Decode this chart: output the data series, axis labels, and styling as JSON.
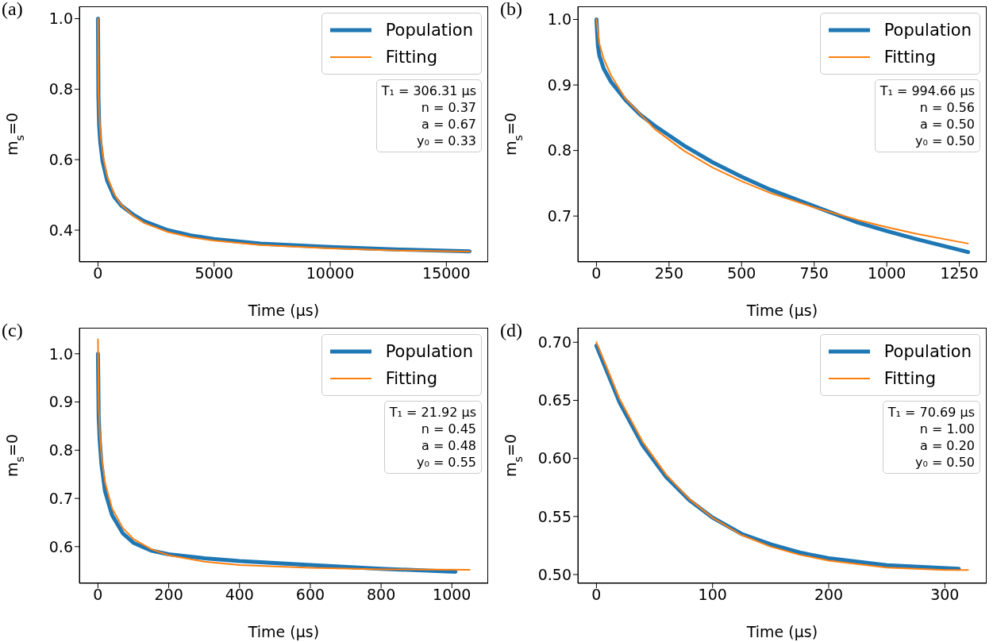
{
  "chart_data": [
    {
      "type": "line",
      "title": "(a)",
      "xlabel": "Time (μs)",
      "ylabel": "m$_{s}$=0",
      "legend": "top right",
      "annotations": [
        "T₁ = 306.31 μs",
        "n = 0.37",
        "a = 0.67",
        "y₀ = 0.33"
      ],
      "xlim": [
        -800,
        16800
      ],
      "ylim": [
        0.31,
        1.035
      ],
      "xticks": [
        0,
        5000,
        10000,
        15000
      ],
      "yticks": [
        {
          "value": 0.4,
          "label": "0.4"
        },
        {
          "value": 0.6,
          "label": "0.6"
        },
        {
          "value": 0.8,
          "label": "0.8"
        },
        {
          "value": 1,
          "label": "1.0"
        }
      ],
      "series": [
        {
          "name": "Population",
          "color": "#1f77b4",
          "x": [
            0,
            20,
            50,
            100,
            200,
            400,
            700,
            1000,
            1500,
            2000,
            3000,
            4000,
            5000,
            7000,
            10000,
            13000,
            16000
          ],
          "values": [
            1.0,
            0.78,
            0.7,
            0.65,
            0.595,
            0.54,
            0.495,
            0.47,
            0.445,
            0.425,
            0.4,
            0.385,
            0.375,
            0.362,
            0.352,
            0.345,
            0.34
          ]
        },
        {
          "name": "Fitting",
          "color": "#ff7f0e",
          "x": [
            0,
            20,
            50,
            100,
            200,
            400,
            700,
            1000,
            1500,
            2000,
            3000,
            4000,
            5000,
            7000,
            10000,
            13000,
            16000
          ],
          "values": [
            1.0,
            0.8,
            0.73,
            0.676,
            0.615,
            0.552,
            0.502,
            0.472,
            0.441,
            0.42,
            0.395,
            0.38,
            0.37,
            0.358,
            0.348,
            0.342,
            0.339
          ]
        }
      ]
    },
    {
      "type": "line",
      "title": "(b)",
      "xlabel": "Time (μs)",
      "ylabel": "m$_{s}$=0",
      "legend": "top right",
      "annotations": [
        "T₁ = 994.66 μs",
        "n = 0.56",
        "a = 0.50",
        "y₀ = 0.50"
      ],
      "xlim": [
        -64,
        1344
      ],
      "ylim": [
        0.63,
        1.02
      ],
      "xticks": [
        0,
        250,
        500,
        750,
        1000,
        1250
      ],
      "yticks": [
        {
          "value": 0.7,
          "label": "0.7"
        },
        {
          "value": 0.8,
          "label": "0.8"
        },
        {
          "value": 0.9,
          "label": "0.9"
        },
        {
          "value": 1,
          "label": "1.0"
        }
      ],
      "series": [
        {
          "name": "Population",
          "color": "#1f77b4",
          "x": [
            0,
            5,
            10,
            25,
            50,
            100,
            150,
            200,
            300,
            400,
            500,
            600,
            750,
            900,
            1000,
            1100,
            1280
          ],
          "values": [
            1.0,
            0.96,
            0.945,
            0.925,
            0.905,
            0.877,
            0.855,
            0.838,
            0.808,
            0.782,
            0.76,
            0.74,
            0.715,
            0.69,
            0.677,
            0.665,
            0.645
          ]
        },
        {
          "name": "Fitting",
          "color": "#ff7f0e",
          "x": [
            0,
            10,
            25,
            50,
            100,
            200,
            300,
            400,
            500,
            600,
            750,
            900,
            1000,
            1100,
            1280
          ],
          "values": [
            1.0,
            0.963,
            0.94,
            0.915,
            0.879,
            0.833,
            0.8,
            0.774,
            0.753,
            0.735,
            0.713,
            0.694,
            0.683,
            0.673,
            0.658
          ]
        }
      ]
    },
    {
      "type": "line",
      "title": "(c)",
      "xlabel": "Time (μs)",
      "ylabel": "m$_{s}$=0",
      "legend": "top right",
      "annotations": [
        "T₁ = 21.92 μs",
        "n = 0.45",
        "a = 0.48",
        "y₀ = 0.55"
      ],
      "xlim": [
        -52.5,
        1102.5
      ],
      "ylim": [
        0.524,
        1.054
      ],
      "xticks": [
        0,
        200,
        400,
        600,
        800,
        1000
      ],
      "yticks": [
        {
          "value": 0.6,
          "label": "0.6"
        },
        {
          "value": 0.7,
          "label": "0.7"
        },
        {
          "value": 0.8,
          "label": "0.8"
        },
        {
          "value": 0.9,
          "label": "0.9"
        },
        {
          "value": 1,
          "label": "1.0"
        }
      ],
      "series": [
        {
          "name": "Population",
          "color": "#1f77b4",
          "x": [
            0,
            2,
            5,
            10,
            20,
            40,
            70,
            100,
            150,
            200,
            300,
            400,
            600,
            800,
            1010
          ],
          "values": [
            1.0,
            0.87,
            0.82,
            0.77,
            0.715,
            0.665,
            0.628,
            0.608,
            0.592,
            0.584,
            0.576,
            0.57,
            0.562,
            0.554,
            0.548
          ]
        },
        {
          "name": "Fitting",
          "color": "#ff7f0e",
          "x": [
            0,
            2,
            5,
            10,
            20,
            40,
            70,
            100,
            150,
            200,
            300,
            400,
            600,
            800,
            1050
          ],
          "values": [
            1.03,
            0.892,
            0.837,
            0.788,
            0.734,
            0.679,
            0.639,
            0.616,
            0.595,
            0.582,
            0.569,
            0.562,
            0.556,
            0.553,
            0.552
          ]
        }
      ]
    },
    {
      "type": "line",
      "title": "(d)",
      "xlabel": "Time (μs)",
      "ylabel": "m$_{s}$=0",
      "legend": "top right",
      "annotations": [
        "T₁ = 70.69 μs",
        "n = 1.00",
        "a = 0.20",
        "y₀ = 0.50"
      ],
      "xlim": [
        -16,
        336
      ],
      "ylim": [
        0.4925,
        0.7125
      ],
      "xticks": [
        0,
        100,
        200,
        300
      ],
      "yticks": [
        {
          "value": 0.5,
          "label": "0.50"
        },
        {
          "value": 0.55,
          "label": "0.55"
        },
        {
          "value": 0.6,
          "label": "0.60"
        },
        {
          "value": 0.65,
          "label": "0.65"
        },
        {
          "value": 0.7,
          "label": "0.70"
        }
      ],
      "series": [
        {
          "name": "Population",
          "color": "#1f77b4",
          "x": [
            0,
            20,
            40,
            60,
            80,
            100,
            125,
            150,
            175,
            200,
            250,
            312
          ],
          "values": [
            0.697,
            0.648,
            0.611,
            0.584,
            0.564,
            0.549,
            0.535,
            0.526,
            0.519,
            0.514,
            0.508,
            0.505
          ]
        },
        {
          "name": "Fitting",
          "color": "#ff7f0e",
          "x": [
            0,
            20,
            40,
            60,
            80,
            100,
            125,
            150,
            175,
            200,
            250,
            300,
            320
          ],
          "values": [
            0.7,
            0.651,
            0.614,
            0.586,
            0.565,
            0.549,
            0.534,
            0.524,
            0.517,
            0.512,
            0.506,
            0.504,
            0.504
          ]
        }
      ]
    }
  ]
}
